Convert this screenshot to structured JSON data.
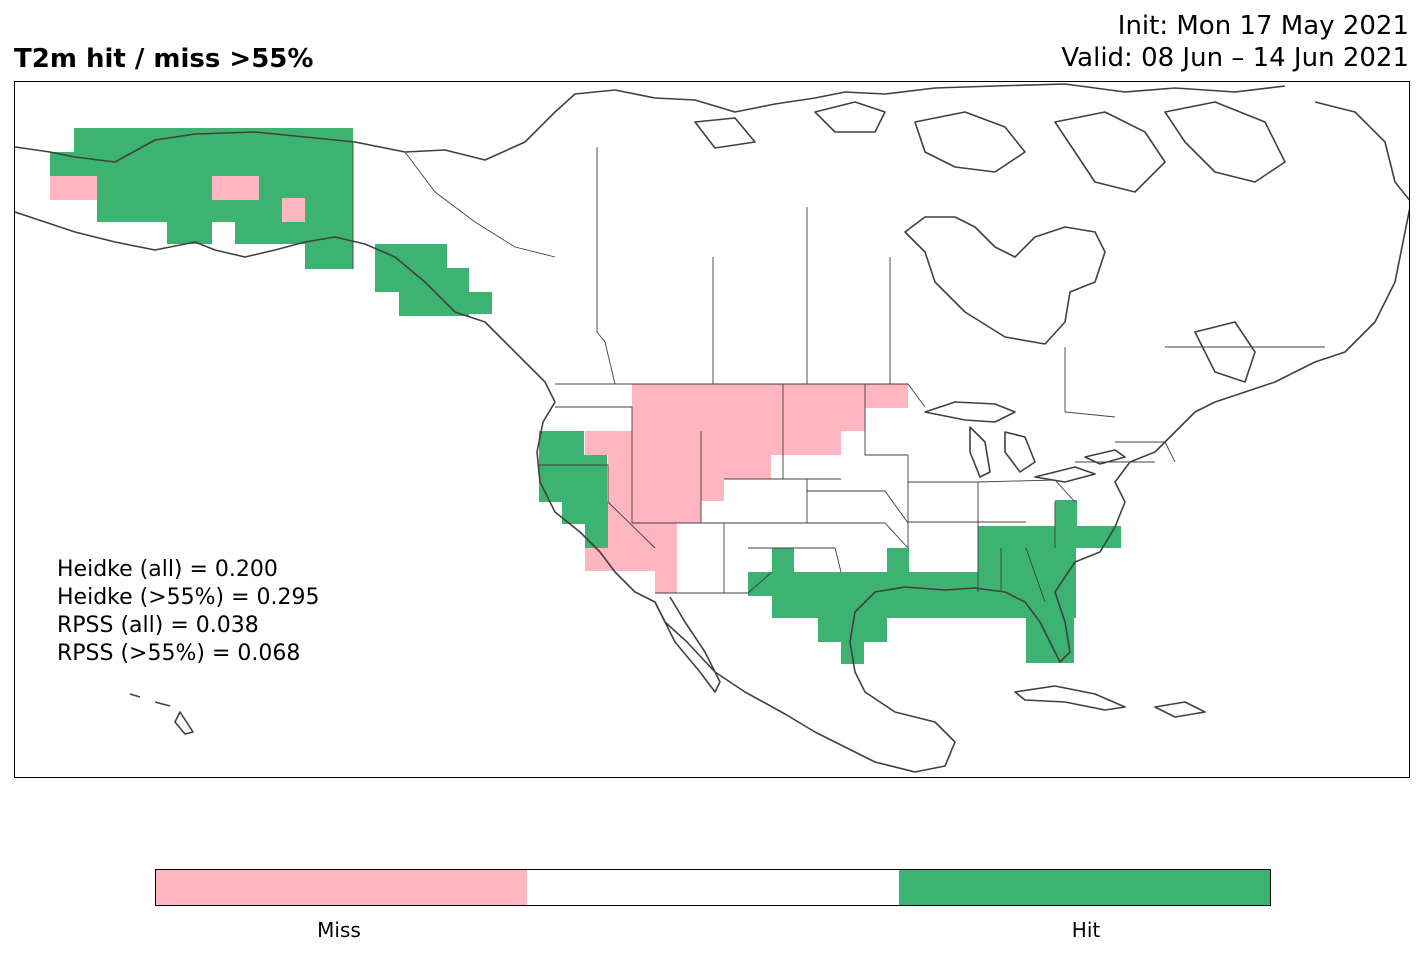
{
  "header": {
    "title": "T2m hit / miss  >55%",
    "init": "Init: Mon 17 May 2021",
    "valid": "Valid: 08 Jun – 14 Jun 2021"
  },
  "scores": [
    "Heidke (all) = 0.200",
    "Heidke (>55%) = 0.295",
    "RPSS (all) = 0.038",
    "RPSS (>55%) = 0.068"
  ],
  "legend": {
    "classes": [
      {
        "label": "Miss",
        "color": "#ffb6c1"
      },
      {
        "label": "",
        "color": "#ffffff"
      },
      {
        "label": "Hit",
        "color": "#3cb371"
      }
    ]
  },
  "colors": {
    "hit": "#3cb371",
    "miss": "#ffb6c1",
    "coast": "#404040",
    "border": "#404040"
  }
}
